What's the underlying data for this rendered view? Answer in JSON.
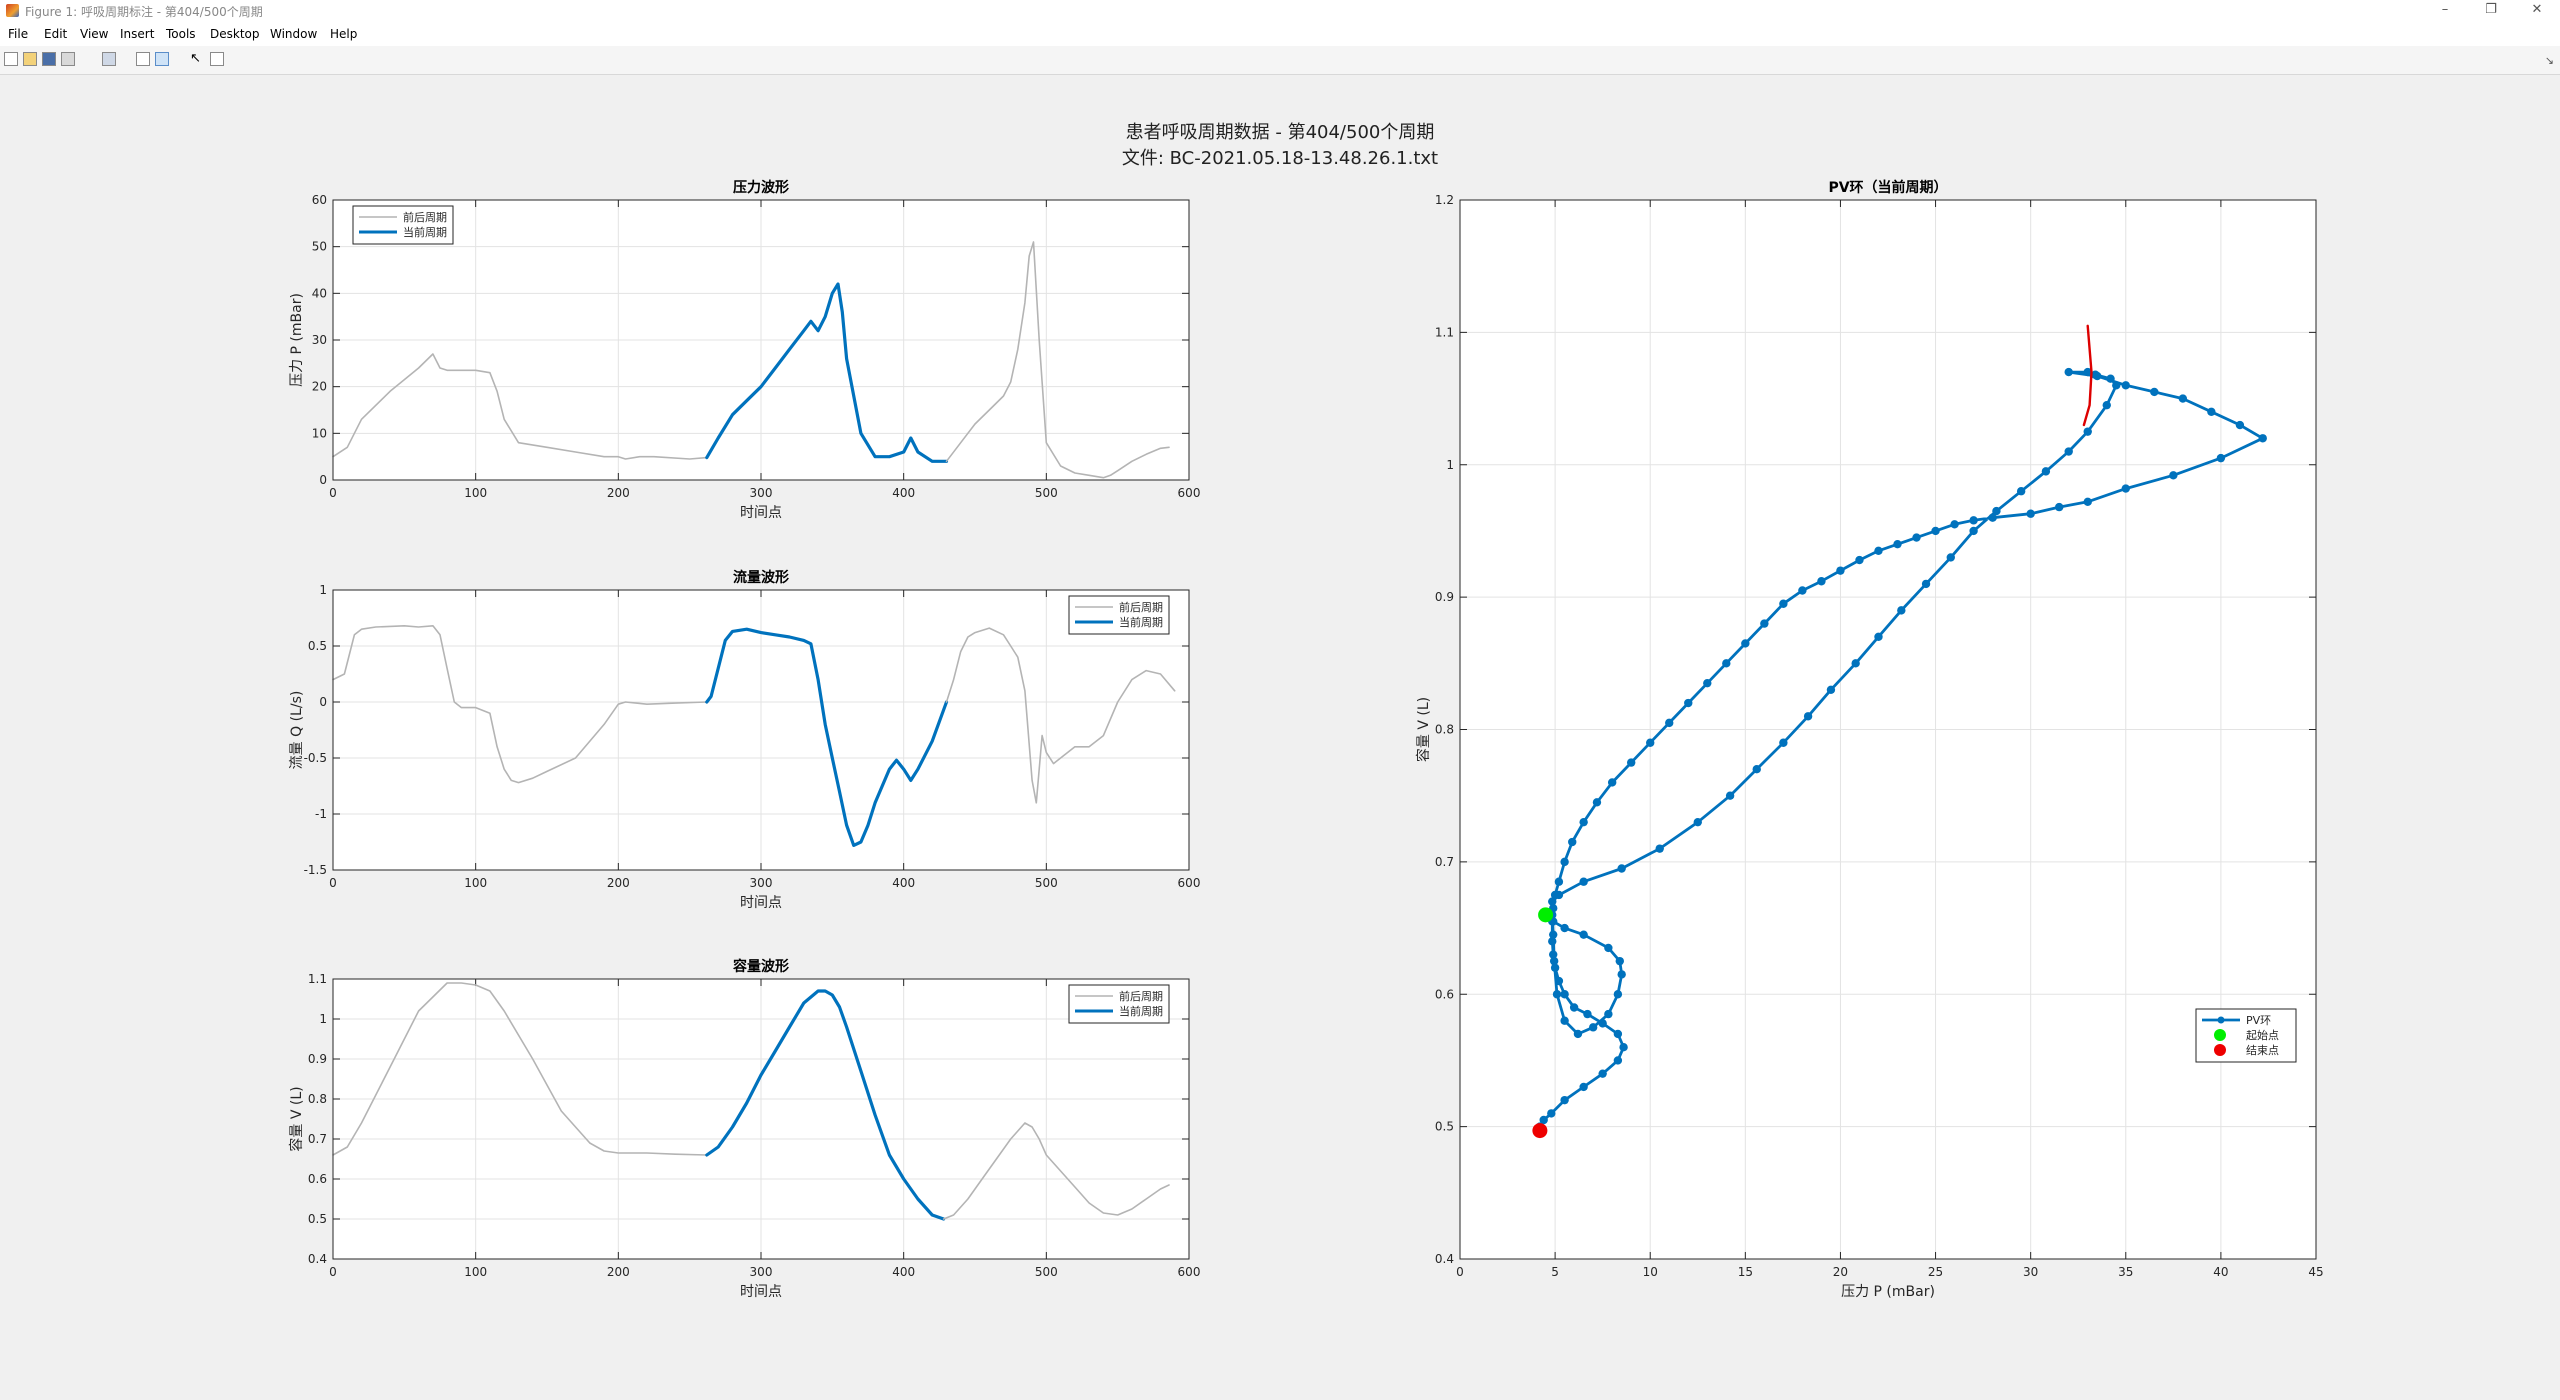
{
  "window": {
    "title": "Figure 1: 呼吸周期标注 - 第404/500个周期",
    "minimize_glyph": "–",
    "restore_glyph": "❐",
    "close_glyph": "✕"
  },
  "menu": [
    "File",
    "Edit",
    "View",
    "Insert",
    "Tools",
    "Desktop",
    "Window",
    "Help"
  ],
  "toolbar": {
    "icons": [
      "new-figure-icon",
      "open-file-icon",
      "save-icon",
      "print-icon",
      "print-preview-icon",
      "dock-icon",
      "tile-icon",
      "pointer-icon",
      "property-editor-icon"
    ],
    "dock_glyph": "↘"
  },
  "figure": {
    "suptitle_line1": "患者呼吸周期数据 - 第404/500个周期",
    "suptitle_line2": "文件: BC-2021.05.18-13.48.26.1.txt"
  },
  "colors": {
    "current": "#0072bd",
    "context": "#b4b4b4",
    "start": "#00ee00",
    "end": "#ee0000",
    "marker_line": "#dd0000",
    "axes_bg": "#ffffff",
    "grid": "#e3e3e3"
  },
  "chart_data": [
    {
      "id": "pressure",
      "type": "line",
      "title": "压力波形",
      "xlabel": "时间点",
      "ylabel": "压力 P (mBar)",
      "xlim": [
        0,
        600
      ],
      "ylim": [
        0,
        60
      ],
      "xticks": [
        0,
        100,
        200,
        300,
        400,
        500,
        600
      ],
      "yticks": [
        0,
        10,
        20,
        30,
        40,
        50,
        60
      ],
      "grid": true,
      "legend_position": "top-left",
      "series": [
        {
          "name": "前后周期",
          "role": "context",
          "x": [
            0,
            10,
            20,
            40,
            60,
            70,
            75,
            80,
            90,
            100,
            110,
            115,
            120,
            130,
            150,
            170,
            190,
            200,
            205,
            215,
            225,
            250,
            262
          ],
          "y": [
            5,
            7,
            13,
            19,
            24,
            27,
            24,
            23.5,
            23.5,
            23.5,
            23,
            19,
            13,
            8,
            7,
            6,
            5,
            5,
            4.5,
            5,
            5,
            4.5,
            4.8
          ]
        },
        {
          "name": "当前周期",
          "role": "current",
          "x": [
            262,
            270,
            280,
            290,
            300,
            310,
            320,
            330,
            335,
            340,
            345,
            350,
            354,
            357,
            360,
            370,
            380,
            390,
            400,
            405,
            410,
            420,
            430
          ],
          "y": [
            4.8,
            9,
            14,
            17,
            20,
            24,
            28,
            32,
            34,
            32,
            35,
            40,
            42,
            36,
            26,
            10,
            5,
            5,
            6,
            9,
            6,
            4,
            4
          ]
        },
        {
          "name": "",
          "role": "context",
          "x": [
            430,
            440,
            450,
            460,
            470,
            475,
            480,
            485,
            488,
            491,
            495,
            500,
            510,
            520,
            530,
            540,
            545,
            550,
            560,
            570,
            580,
            586
          ],
          "y": [
            4,
            8,
            12,
            15,
            18,
            21,
            28,
            38,
            48,
            51,
            30,
            8,
            3,
            1.5,
            1,
            0.5,
            1,
            2,
            4,
            5.5,
            6.8,
            7
          ]
        }
      ]
    },
    {
      "id": "flow",
      "type": "line",
      "title": "流量波形",
      "xlabel": "时间点",
      "ylabel": "流量 Q (L/s)",
      "xlim": [
        0,
        600
      ],
      "ylim": [
        -1.5,
        1
      ],
      "xticks": [
        0,
        100,
        200,
        300,
        400,
        500,
        600
      ],
      "yticks": [
        -1.5,
        -1,
        -0.5,
        0,
        0.5,
        1
      ],
      "grid": true,
      "legend_position": "top-right",
      "series": [
        {
          "name": "前后周期",
          "role": "context",
          "x": [
            0,
            8,
            15,
            20,
            30,
            50,
            60,
            70,
            75,
            80,
            85,
            90,
            100,
            110,
            115,
            120,
            125,
            130,
            140,
            150,
            170,
            190,
            200,
            205,
            220,
            240,
            262
          ],
          "y": [
            0.2,
            0.25,
            0.6,
            0.65,
            0.67,
            0.68,
            0.67,
            0.68,
            0.6,
            0.3,
            0,
            -0.05,
            -0.05,
            -0.1,
            -0.4,
            -0.6,
            -0.7,
            -0.72,
            -0.68,
            -0.62,
            -0.5,
            -0.2,
            -0.02,
            0,
            -0.02,
            -0.01,
            0
          ]
        },
        {
          "name": "当前周期",
          "role": "current",
          "x": [
            262,
            265,
            270,
            275,
            280,
            290,
            300,
            310,
            320,
            330,
            335,
            340,
            345,
            350,
            355,
            360,
            365,
            370,
            375,
            380,
            390,
            395,
            400,
            405,
            410,
            420,
            430
          ],
          "y": [
            0,
            0.05,
            0.3,
            0.55,
            0.63,
            0.65,
            0.62,
            0.6,
            0.58,
            0.55,
            0.52,
            0.2,
            -0.2,
            -0.5,
            -0.8,
            -1.1,
            -1.28,
            -1.25,
            -1.1,
            -0.9,
            -0.6,
            -0.52,
            -0.6,
            -0.7,
            -0.6,
            -0.35,
            0
          ]
        },
        {
          "name": "",
          "role": "context",
          "x": [
            430,
            435,
            440,
            445,
            450,
            460,
            470,
            475,
            480,
            485,
            490,
            493,
            497,
            500,
            505,
            510,
            520,
            530,
            540,
            550,
            560,
            570,
            580,
            590
          ],
          "y": [
            0,
            0.2,
            0.45,
            0.58,
            0.62,
            0.66,
            0.6,
            0.5,
            0.4,
            0.1,
            -0.7,
            -0.9,
            -0.3,
            -0.45,
            -0.55,
            -0.5,
            -0.4,
            -0.4,
            -0.3,
            0,
            0.2,
            0.28,
            0.25,
            0.1
          ]
        }
      ]
    },
    {
      "id": "volume",
      "type": "line",
      "title": "容量波形",
      "xlabel": "时间点",
      "ylabel": "容量 V (L)",
      "xlim": [
        0,
        600
      ],
      "ylim": [
        0.4,
        1.1
      ],
      "xticks": [
        0,
        100,
        200,
        300,
        400,
        500,
        600
      ],
      "yticks": [
        0.4,
        0.5,
        0.6,
        0.7,
        0.8,
        0.9,
        1,
        1.1
      ],
      "grid": true,
      "legend_position": "top-right",
      "series": [
        {
          "name": "前后周期",
          "role": "context",
          "x": [
            0,
            10,
            20,
            40,
            60,
            80,
            90,
            100,
            110,
            120,
            140,
            160,
            180,
            190,
            200,
            220,
            240,
            262
          ],
          "y": [
            0.66,
            0.68,
            0.74,
            0.88,
            1.02,
            1.09,
            1.09,
            1.085,
            1.07,
            1.02,
            0.9,
            0.77,
            0.69,
            0.67,
            0.665,
            0.665,
            0.662,
            0.66
          ]
        },
        {
          "name": "当前周期",
          "role": "current",
          "x": [
            262,
            270,
            280,
            290,
            300,
            310,
            320,
            330,
            340,
            345,
            350,
            355,
            360,
            370,
            380,
            390,
            400,
            410,
            420,
            428
          ],
          "y": [
            0.66,
            0.68,
            0.73,
            0.79,
            0.86,
            0.92,
            0.98,
            1.04,
            1.07,
            1.07,
            1.06,
            1.03,
            0.98,
            0.87,
            0.76,
            0.66,
            0.6,
            0.55,
            0.51,
            0.5
          ]
        },
        {
          "name": "",
          "role": "context",
          "x": [
            428,
            435,
            445,
            455,
            465,
            475,
            485,
            490,
            495,
            500,
            510,
            520,
            530,
            540,
            550,
            560,
            570,
            580,
            586
          ],
          "y": [
            0.5,
            0.51,
            0.55,
            0.6,
            0.65,
            0.7,
            0.74,
            0.73,
            0.7,
            0.66,
            0.62,
            0.58,
            0.54,
            0.515,
            0.51,
            0.525,
            0.55,
            0.575,
            0.585
          ]
        }
      ]
    },
    {
      "id": "pv-loop",
      "type": "line",
      "title": "PV环（当前周期）",
      "xlabel": "压力 P (mBar)",
      "ylabel": "容量 V (L)",
      "xlim": [
        0,
        45
      ],
      "ylim": [
        0.4,
        1.2
      ],
      "xticks": [
        0,
        5,
        10,
        15,
        20,
        25,
        30,
        35,
        40,
        45
      ],
      "yticks": [
        0.4,
        0.5,
        0.6,
        0.7,
        0.8,
        0.9,
        1,
        1.1,
        1.2
      ],
      "grid": true,
      "legend_position": "bottom-right",
      "series": [
        {
          "name": "PV环",
          "role": "pv",
          "x": [
            4.5,
            4.9,
            5.5,
            6.5,
            7.8,
            8.4,
            8.5,
            8.3,
            7.8,
            7.0,
            6.2,
            5.5,
            5.1,
            4.95,
            4.9,
            4.85,
            4.85,
            5.2,
            6.5,
            8.5,
            10.5,
            12.5,
            14.2,
            15.6,
            17.0,
            18.3,
            19.5,
            20.8,
            22.0,
            23.2,
            24.5,
            25.8,
            27.0,
            28.2,
            29.5,
            30.8,
            32.0,
            33.0,
            34.0,
            34.5,
            34.2,
            33.4,
            33.0,
            32.0,
            33.5,
            35.0,
            36.5,
            38.0,
            39.5,
            41.0,
            42.2,
            40.0,
            37.5,
            35.0,
            33.0,
            31.5,
            30.0,
            28.0,
            27.0,
            26.0,
            25.0,
            24.0,
            23.0,
            22.0,
            21.0,
            20.0,
            19.0,
            18.0,
            17.0,
            16.0,
            15.0,
            14.0,
            13.0,
            12.0,
            11.0,
            10.0,
            9.0,
            8.0,
            7.2,
            6.5,
            5.9,
            5.5,
            5.2,
            5.0,
            4.9,
            4.85,
            4.85,
            4.9,
            5.0,
            5.2,
            5.5,
            6.0,
            6.7,
            7.5,
            8.3,
            8.6,
            8.3,
            7.5,
            6.5,
            5.5,
            4.8,
            4.4,
            4.2,
            4.15
          ],
          "y": [
            0.66,
            0.655,
            0.65,
            0.645,
            0.635,
            0.625,
            0.615,
            0.6,
            0.585,
            0.575,
            0.57,
            0.58,
            0.6,
            0.625,
            0.645,
            0.66,
            0.67,
            0.675,
            0.685,
            0.695,
            0.71,
            0.73,
            0.75,
            0.77,
            0.79,
            0.81,
            0.83,
            0.85,
            0.87,
            0.89,
            0.91,
            0.93,
            0.95,
            0.965,
            0.98,
            0.995,
            1.01,
            1.025,
            1.045,
            1.06,
            1.065,
            1.068,
            1.07,
            1.07,
            1.067,
            1.06,
            1.055,
            1.05,
            1.04,
            1.03,
            1.02,
            1.005,
            0.992,
            0.982,
            0.972,
            0.968,
            0.963,
            0.96,
            0.958,
            0.955,
            0.95,
            0.945,
            0.94,
            0.935,
            0.928,
            0.92,
            0.912,
            0.905,
            0.895,
            0.88,
            0.865,
            0.85,
            0.835,
            0.82,
            0.805,
            0.79,
            0.775,
            0.76,
            0.745,
            0.73,
            0.715,
            0.7,
            0.685,
            0.675,
            0.665,
            0.655,
            0.64,
            0.63,
            0.62,
            0.61,
            0.6,
            0.59,
            0.585,
            0.578,
            0.57,
            0.56,
            0.55,
            0.54,
            0.53,
            0.52,
            0.51,
            0.505,
            0.5,
            0.497
          ]
        },
        {
          "name": "起始点",
          "role": "start",
          "x": [
            4.5
          ],
          "y": [
            0.66
          ]
        },
        {
          "name": "结束点",
          "role": "end",
          "x": [
            4.2
          ],
          "y": [
            0.497
          ]
        },
        {
          "name": "",
          "role": "marker",
          "x": [
            33.0,
            33.2,
            33.1,
            32.8
          ],
          "y": [
            1.105,
            1.07,
            1.045,
            1.03
          ]
        }
      ]
    }
  ]
}
